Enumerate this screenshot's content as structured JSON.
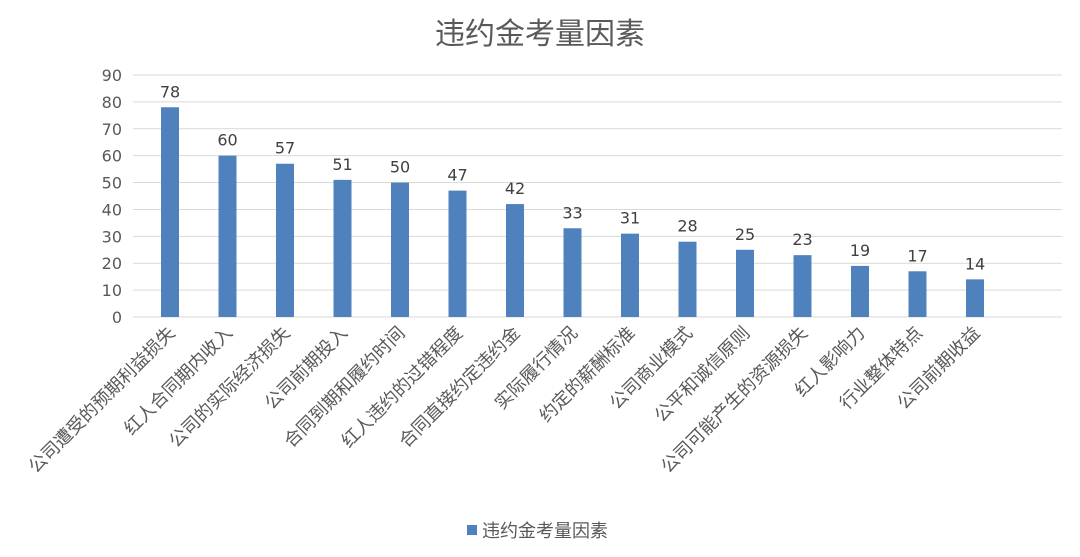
{
  "chart_data": {
    "type": "bar",
    "title": "违约金考量因素",
    "categories": [
      "公司遭受的预期利益损失",
      "红人合同期内收入",
      "公司的实际经济损失",
      "公司前期投入",
      "合同到期和履约时间",
      "红人违约的过错程度",
      "合同直接约定违约金",
      "实际履行情况",
      "约定的薪酬标准",
      "公司商业模式",
      "公平和诚信原则",
      "公司可能产生的资源损失",
      "红人影响力",
      "行业整体特点",
      "公司前期收益"
    ],
    "series": [
      {
        "name": "违约金考量因素",
        "values": [
          78,
          60,
          57,
          51,
          50,
          47,
          42,
          33,
          31,
          28,
          25,
          23,
          19,
          17,
          14
        ]
      }
    ],
    "ylim": [
      0,
      90
    ],
    "yticks": [
      0,
      10,
      20,
      30,
      40,
      50,
      60,
      70,
      80,
      90
    ],
    "grid": true,
    "data_labels": true,
    "legend": "bottom",
    "color": "#4f81bd"
  }
}
